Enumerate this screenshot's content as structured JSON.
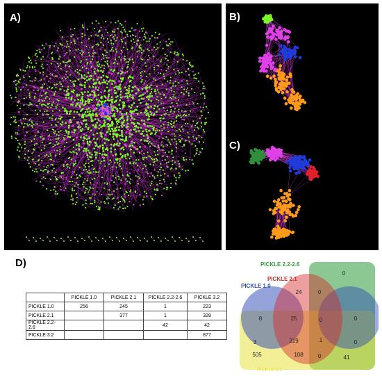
{
  "panels": {
    "a_label": "A)",
    "b_label": "B)",
    "c_label": "C)",
    "d_label": "D)"
  },
  "colors": {
    "edges": "#d23ad6",
    "node_green": "#7cf52a",
    "node_magenta": "#e040e8",
    "node_orange": "#ff9a1a",
    "node_blue": "#1f3bd9",
    "node_red": "#e0202a",
    "node_darkgreen": "#2f8f3a",
    "set_1_0": "#2948b5",
    "set_2_1": "#d62828",
    "set_2_2_2_6": "#2e9b3a",
    "set_3_2": "#e8e030"
  },
  "table": {
    "headers": [
      "",
      "PICKLE 1.0",
      "PICKLE 2.1",
      "PICKLE 2.2-2.6",
      "PICKLE 3.2"
    ],
    "rows": [
      [
        "PICKLE 1.0",
        "256",
        "245",
        "1",
        "223"
      ],
      [
        "PICKLE 2.1",
        "",
        "377",
        "1",
        "328"
      ],
      [
        "PICKLE 2.2-2.6",
        "",
        "",
        "42",
        "42"
      ],
      [
        "PICKLE 3.2",
        "",
        "",
        "",
        "877"
      ]
    ]
  },
  "venn": {
    "sets": {
      "s1": "PICKLE 1.0",
      "s2": "PICKLE 2.1",
      "s3": "PICKLE 2.2-2.6",
      "s4": "PICKLE 3.2"
    },
    "regions": {
      "only_2_2": "0",
      "top_21": "24",
      "top_21_22": "0",
      "left_10": "8",
      "center_10_21": "25",
      "center_21_22_x": "0",
      "right_22_10": "0",
      "left_10_32": "3",
      "core": "219",
      "core_22": "1",
      "right_22_32": "0",
      "only_32": "505",
      "lower_21_32": "108",
      "lower_21_22_32": "0",
      "only_22_32": "41"
    }
  }
}
